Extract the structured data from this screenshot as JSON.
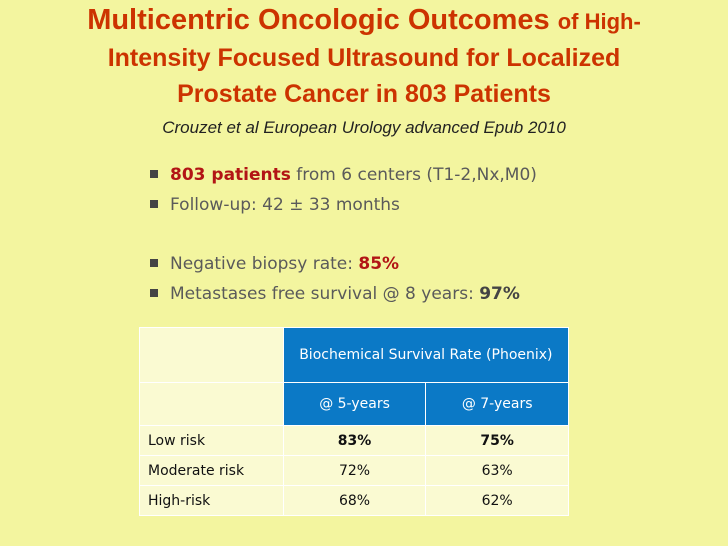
{
  "title": {
    "line1_main": "Multicentric Oncologic Outcomes",
    "line1_small": "of High-",
    "line2": "Intensity Focused Ultrasound for Localized",
    "line3": "Prostate Cancer in 803 Patients"
  },
  "citation": "Crouzet et al European Urology advanced Epub 2010",
  "bullets": [
    {
      "highlight": "803 patients",
      "text": " from 6 centers (T1-2,Nx,M0)"
    },
    {
      "text": "Follow-up: 42 ± 33 months"
    },
    {
      "text": "Negative biopsy rate: ",
      "highlight": "85%"
    },
    {
      "text": "Metastases free survival @ 8 years: ",
      "highlight": "97%"
    }
  ],
  "table": {
    "group_header": "Biochemical Survival Rate (Phoenix)",
    "columns": [
      "@ 5-years",
      "@ 7-years"
    ],
    "rows": [
      {
        "label": "Low risk",
        "values": [
          "83%",
          "75%"
        ]
      },
      {
        "label": "Moderate risk",
        "values": [
          "72%",
          "63%"
        ]
      },
      {
        "label": "High-risk",
        "values": [
          "68%",
          "62%"
        ]
      }
    ]
  },
  "colors": {
    "background": "#f3f59f",
    "title": "#cc3300",
    "table_header": "#0b79c6",
    "highlight_red": "#b21515"
  }
}
